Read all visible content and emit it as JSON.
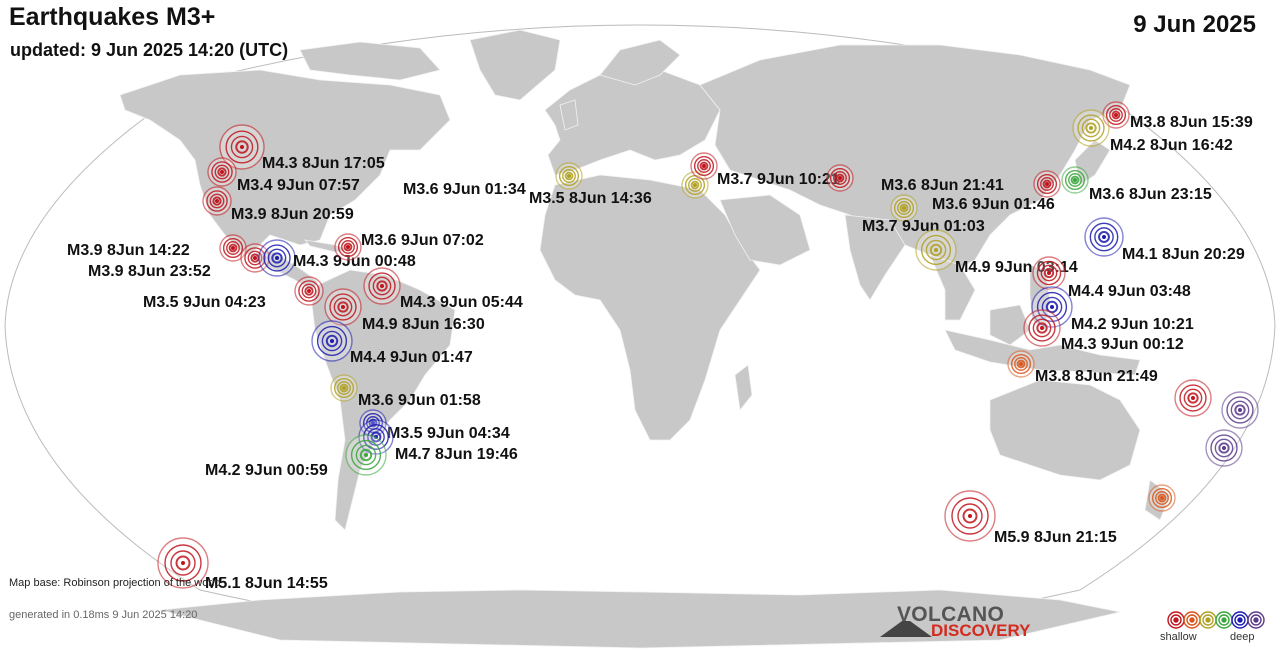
{
  "header": {
    "title": "Earthquakes M3+",
    "updated": "updated:  9 Jun 2025 14:20 (UTC)",
    "date": "9 Jun 2025"
  },
  "footer": {
    "map_base": "Map base: Robinson projection of the world",
    "generated": "generated in 0.18ms  9 Jun 2025 14:20"
  },
  "logo": {
    "line1": "VOLCANO",
    "line2": "DISCOVERY"
  },
  "legend": {
    "shallow": "shallow",
    "deep": "deep",
    "depth_colors": [
      "#c0141c",
      "#d9551a",
      "#b0a020",
      "#3aa53a",
      "#1b1bb0",
      "#5a3a8a"
    ]
  },
  "colors": {
    "ocean": "#ffffff",
    "land": "#c8c8c8",
    "land_border": "#f2f2f2",
    "frame": "#bbbbbb"
  },
  "quakes": [
    {
      "label": "M4.3  8Jun 17:05",
      "depth_class": "shallow"
    },
    {
      "label": "M3.4  9Jun 07:57",
      "depth_class": "shallow"
    },
    {
      "label": "M3.9  8Jun 20:59",
      "depth_class": "shallow"
    },
    {
      "label": "M3.9  8Jun 14:22",
      "depth_class": "shallow"
    },
    {
      "label": "M3.9  8Jun 23:52",
      "depth_class": "shallow"
    },
    {
      "label": "M4.3  9Jun 00:48",
      "depth_class": "deep"
    },
    {
      "label": "M3.6  9Jun 07:02",
      "depth_class": "shallow"
    },
    {
      "label": "M3.5  9Jun 04:23",
      "depth_class": "shallow"
    },
    {
      "label": "M4.3  9Jun 05:44",
      "depth_class": "shallow"
    },
    {
      "label": "M4.9  8Jun 16:30",
      "depth_class": "shallow"
    },
    {
      "label": "M4.4  9Jun 01:47",
      "depth_class": "deep"
    },
    {
      "label": "M3.6  9Jun 01:58",
      "depth_class": "intermediate"
    },
    {
      "label": "M3.5  9Jun 04:34",
      "depth_class": "deep"
    },
    {
      "label": "M4.7  8Jun 19:46",
      "depth_class": "deep"
    },
    {
      "label": "M4.2  9Jun 00:59",
      "depth_class": "mid"
    },
    {
      "label": "M5.1  8Jun 14:55",
      "depth_class": "shallow"
    },
    {
      "label": "M3.6  9Jun 01:34",
      "depth_class": "intermediate"
    },
    {
      "label": "M3.5  8Jun 14:36",
      "depth_class": "intermediate"
    },
    {
      "label": "M3.7  9Jun 10:21",
      "depth_class": "shallow"
    },
    {
      "label": "M3.6  8Jun 21:41",
      "depth_class": "shallow"
    },
    {
      "label": "M3.6  9Jun 01:46",
      "depth_class": "shallow"
    },
    {
      "label": "M3.7  9Jun 01:03",
      "depth_class": "intermediate"
    },
    {
      "label": "M4.9  9Jun 03:14",
      "depth_class": "intermediate"
    },
    {
      "label": "M3.8  8Jun 15:39",
      "depth_class": "shallow"
    },
    {
      "label": "M4.2  8Jun 16:42",
      "depth_class": "intermediate"
    },
    {
      "label": "M3.6  8Jun 23:15",
      "depth_class": "mid"
    },
    {
      "label": "M4.1  8Jun 20:29",
      "depth_class": "deep"
    },
    {
      "label": "M4.4  9Jun 03:48",
      "depth_class": "shallow"
    },
    {
      "label": "M4.2  9Jun 10:21",
      "depth_class": "deep"
    },
    {
      "label": "M4.3  9Jun 00:12",
      "depth_class": "shallow"
    },
    {
      "label": "M3.8  8Jun 21:49",
      "depth_class": "orange"
    },
    {
      "label": "M5.9  8Jun 21:15",
      "depth_class": "shallow"
    },
    {
      "label": "",
      "depth_class": "shallow"
    },
    {
      "label": "",
      "depth_class": "deepest"
    },
    {
      "label": "",
      "depth_class": "deepest"
    },
    {
      "label": "",
      "depth_class": "orange"
    }
  ]
}
